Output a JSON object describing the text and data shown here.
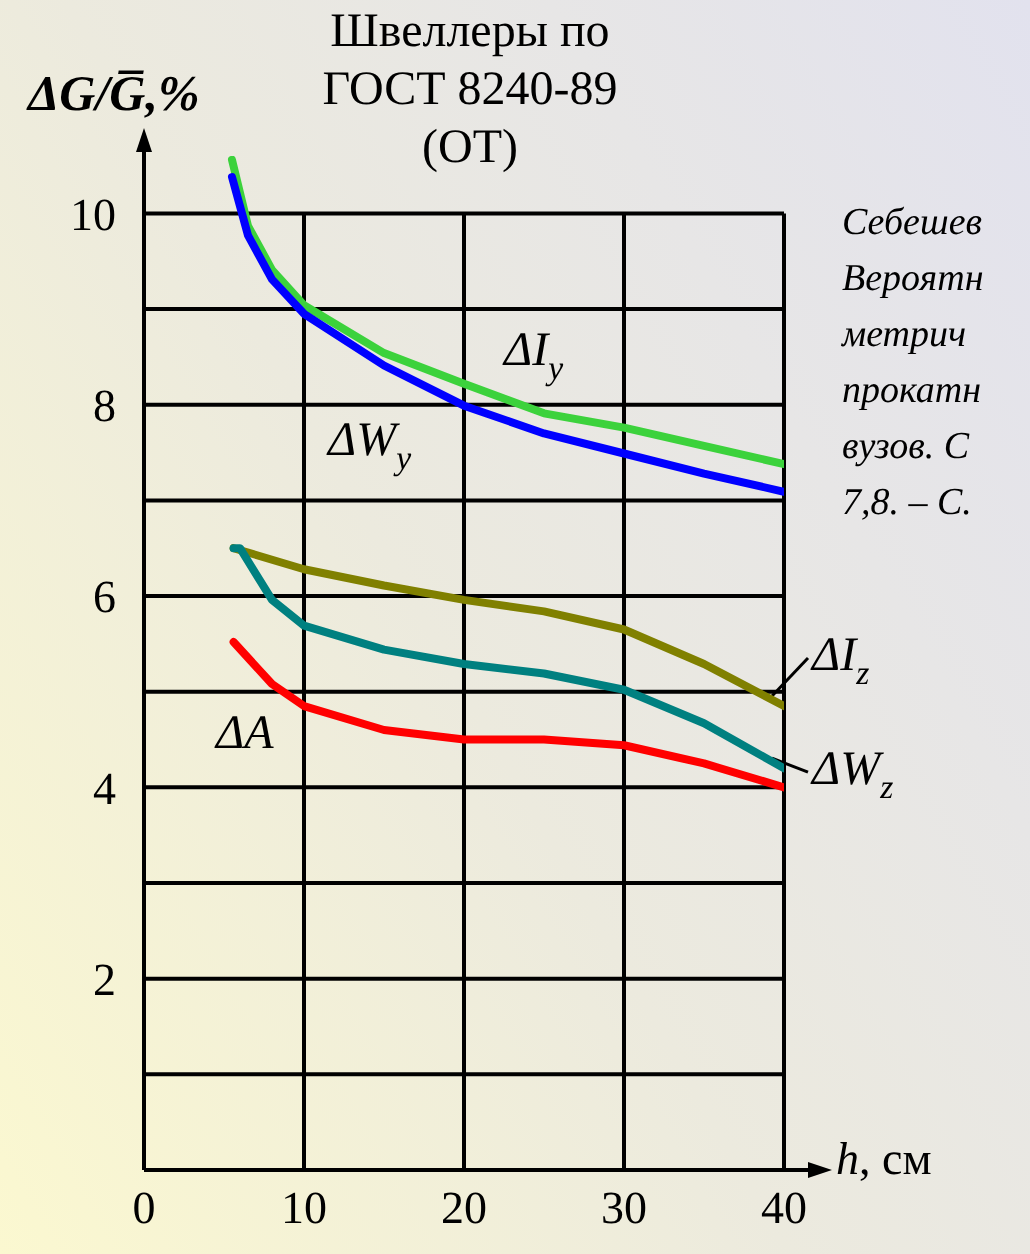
{
  "chart_data": {
    "type": "line",
    "title": "Швеллеры по ГОСТ 8240-89 (ОТ)",
    "xlabel": "h, см",
    "ylabel": "ΔG/G̅,%",
    "annotations": [
      "Себешев",
      "Вероятн",
      "метрич",
      "прокатн",
      "вузов. С",
      "7,8. – С."
    ],
    "xlim": [
      0,
      40
    ],
    "xticks": [
      0,
      10,
      20,
      30,
      40
    ],
    "ylim": [
      0,
      10.6
    ],
    "yticks": [
      {
        "value": 0,
        "label": null
      },
      {
        "value": 1,
        "label": null
      },
      2,
      {
        "value": 3,
        "label": null
      },
      4,
      {
        "value": 5,
        "label": null
      },
      6,
      {
        "value": 7,
        "label": null
      },
      8,
      {
        "value": 9,
        "label": null
      },
      10
    ],
    "grid": true,
    "marker": "none",
    "line_style": "solid",
    "series": [
      {
        "name": "ΔI$_{y}$",
        "color": "#3cd23c",
        "x": [
          5.5,
          6.5,
          8,
          10,
          15,
          20,
          25,
          30,
          35,
          40
        ],
        "values": [
          10.56,
          9.87,
          9.41,
          9.04,
          8.54,
          8.22,
          7.91,
          7.76,
          7.57,
          7.38
        ]
      },
      {
        "name": "ΔW$_{y}$",
        "color": "#0000ff",
        "x": [
          5.5,
          6.5,
          8,
          10,
          15,
          20,
          25,
          30,
          35,
          40
        ],
        "values": [
          10.38,
          9.77,
          9.31,
          8.95,
          8.41,
          7.99,
          7.7,
          7.49,
          7.28,
          7.09
        ]
      },
      {
        "name": "ΔI$_{z}$",
        "color": "#808000",
        "x": [
          5.6,
          10,
          15,
          20,
          25,
          30,
          35,
          40
        ],
        "values": [
          6.5,
          6.28,
          6.11,
          5.96,
          5.84,
          5.65,
          5.29,
          4.85
        ]
      },
      {
        "name": "ΔW$_{z}$",
        "color": "#008080",
        "x": [
          5.6,
          6,
          8,
          10,
          15,
          20,
          25,
          30,
          35,
          40
        ],
        "values": [
          6.5,
          6.5,
          5.96,
          5.69,
          5.44,
          5.29,
          5.19,
          5.02,
          4.67,
          4.2
        ]
      },
      {
        "name": "ΔA",
        "color": "#ff0000",
        "x": [
          5.6,
          8,
          10,
          15,
          20,
          25,
          30,
          35,
          40
        ],
        "values": [
          5.52,
          5.08,
          4.85,
          4.6,
          4.5,
          4.5,
          4.44,
          4.25,
          4.0
        ]
      }
    ]
  }
}
